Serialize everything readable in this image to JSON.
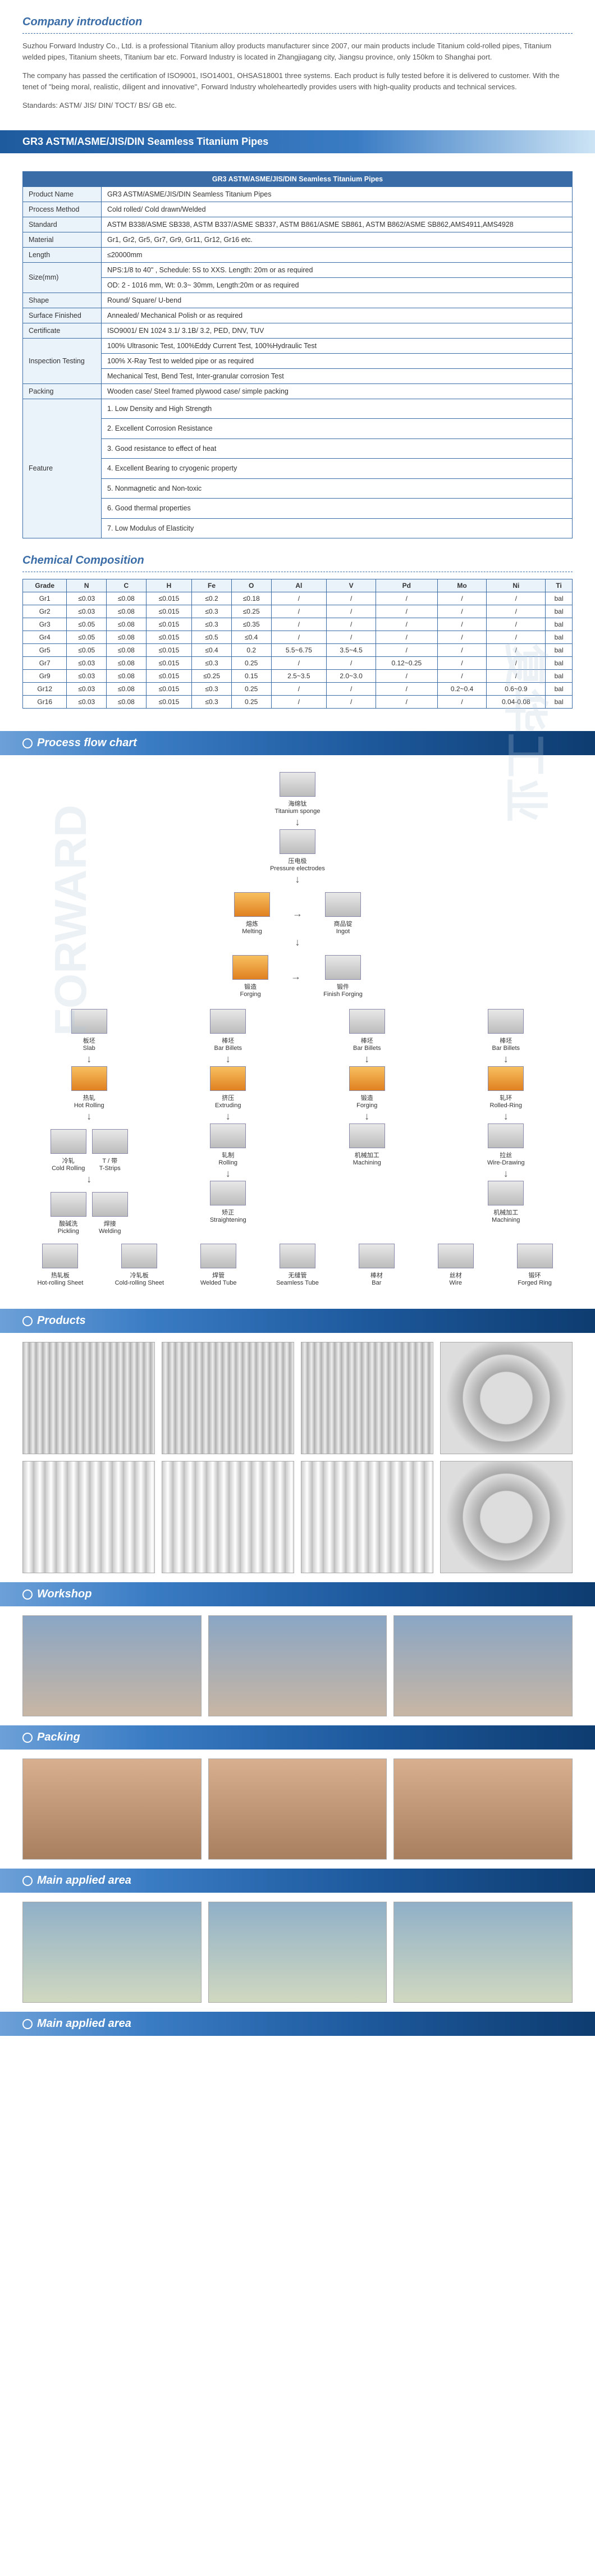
{
  "company_intro": {
    "title": "Company introduction",
    "p1": "Suzhou Forward Industry Co., Ltd. is a professional Titanium alloy products manufacturer since 2007, our main products include Titanium cold-rolled pipes, Titanium welded pipes, Titanium sheets, Titanium bar etc. Forward Industry is located in Zhangjiagang city, Jiangsu province, only 150km to Shanghai port.",
    "p2": "The company has passed the certification of ISO9001, ISO14001, OHSAS18001 three systems. Each product is fully tested before it is delivered to customer. With the tenet of \"being moral, realistic, diligent and innovative\", Forward Industry wholeheartedly provides users with high-quality products and technical services.",
    "p3": "Standards: ASTM/ JIS/ DIN/ TOCT/ BS/ GB etc."
  },
  "banner": "GR3 ASTM/ASME/JIS/DIN Seamless Titanium  Pipes",
  "spec": {
    "header": "GR3 ASTM/ASME/JIS/DIN Seamless Titanium  Pipes",
    "rows": [
      {
        "label": "Product Name",
        "value": "GR3 ASTM/ASME/JIS/DIN Seamless Titanium  Pipes"
      },
      {
        "label": "Process Method",
        "value": "Cold rolled/ Cold drawn/Welded"
      },
      {
        "label": "Standard",
        "value": "ASTM B338/ASME SB338, ASTM B337/ASME SB337, ASTM B861/ASME SB861, ASTM B862/ASME SB862,AMS4911,AMS4928"
      },
      {
        "label": "Material",
        "value": "Gr1, Gr2, Gr5, Gr7, Gr9, Gr11, Gr12, Gr16 etc."
      },
      {
        "label": "Length",
        "value": "≤20000mm"
      },
      {
        "label": "Size(mm)",
        "value": "NPS:1/8 to 40\" , Schedule: 5S to XXS. Length: 20m or as required\nOD: 2 - 1016 mm, Wt: 0.3~ 30mm, Length:20m or as required"
      },
      {
        "label": "Shape",
        "value": "Round/ Square/ U-bend"
      },
      {
        "label": "Surface Finished",
        "value": "Annealed/ Mechanical Polish or as required"
      },
      {
        "label": "Certificate",
        "value": "ISO9001/  EN 1024 3.1/ 3.1B/ 3.2, PED, DNV, TUV"
      },
      {
        "label": "Inspection Testing",
        "value": "100% Ultrasonic Test, 100%Eddy Current Test, 100%Hydraulic Test\n100% X-Ray Test to welded pipe or as required\nMechanical Test, Bend Test, Inter-granular corrosion Test"
      },
      {
        "label": "Packing",
        "value": "Wooden case/ Steel framed plywood case/ simple packing"
      },
      {
        "label": "Feature",
        "value": "1. Low Density and High Strength\n2. Excellent Corrosion Resistance\n3. Good resistance to effect of heat\n4. Excellent Bearing to cryogenic property\n5. Nonmagnetic and Non-toxic\n6. Good thermal properties\n7. Low Modulus of Elasticity"
      }
    ]
  },
  "chem": {
    "title": "Chemical Composition",
    "columns": [
      "Grade",
      "N",
      "C",
      "H",
      "Fe",
      "O",
      "Al",
      "V",
      "Pd",
      "Mo",
      "Ni",
      "Ti"
    ],
    "rows": [
      [
        "Gr1",
        "≤0.03",
        "≤0.08",
        "≤0.015",
        "≤0.2",
        "≤0.18",
        "/",
        "/",
        "/",
        "/",
        "/",
        "bal"
      ],
      [
        "Gr2",
        "≤0.03",
        "≤0.08",
        "≤0.015",
        "≤0.3",
        "≤0.25",
        "/",
        "/",
        "/",
        "/",
        "/",
        "bal"
      ],
      [
        "Gr3",
        "≤0.05",
        "≤0.08",
        "≤0.015",
        "≤0.3",
        "≤0.35",
        "/",
        "/",
        "/",
        "/",
        "/",
        "bal"
      ],
      [
        "Gr4",
        "≤0.05",
        "≤0.08",
        "≤0.015",
        "≤0.5",
        "≤0.4",
        "/",
        "/",
        "/",
        "/",
        "/",
        "bal"
      ],
      [
        "Gr5",
        "≤0.05",
        "≤0.08",
        "≤0.015",
        "≤0.4",
        "0.2",
        "5.5~6.75",
        "3.5~4.5",
        "/",
        "/",
        "/",
        "bal"
      ],
      [
        "Gr7",
        "≤0.03",
        "≤0.08",
        "≤0.015",
        "≤0.3",
        "0.25",
        "/",
        "/",
        "0.12~0.25",
        "/",
        "/",
        "bal"
      ],
      [
        "Gr9",
        "≤0.03",
        "≤0.08",
        "≤0.015",
        "≤0.25",
        "0.15",
        "2.5~3.5",
        "2.0~3.0",
        "/",
        "/",
        "/",
        "bal"
      ],
      [
        "Gr12",
        "≤0.03",
        "≤0.08",
        "≤0.015",
        "≤0.3",
        "0.25",
        "/",
        "/",
        "/",
        "0.2~0.4",
        "0.6~0.9",
        "bal"
      ],
      [
        "Gr16",
        "≤0.03",
        "≤0.08",
        "≤0.015",
        "≤0.3",
        "0.25",
        "/",
        "/",
        "/",
        "/",
        "0.04-0.08",
        "bal"
      ]
    ]
  },
  "ribbons": {
    "flow": "Process flow chart",
    "products": "Products",
    "workshop": "Workshop",
    "packing": "Packing",
    "area1": "Main applied area",
    "area2": "Main applied area"
  },
  "flow": {
    "sponge": {
      "cn": "海绵钛",
      "en": "Titanium sponge"
    },
    "electrode": {
      "cn": "压电极",
      "en": "Pressure electrodes"
    },
    "melt": {
      "cn": "熔炼",
      "en": "Melting"
    },
    "ingot": {
      "cn": "商品锭",
      "en": "Ingot"
    },
    "forging": {
      "cn": "锻造",
      "en": "Forging"
    },
    "finish_forge": {
      "cn": "锻件",
      "en": "Finish Forging"
    },
    "slab": {
      "cn": "板坯",
      "en": "Slab"
    },
    "bar_billets1": {
      "cn": "棒坯",
      "en": "Bar Billets"
    },
    "bar_billets2": {
      "cn": "棒坯",
      "en": "Bar Billets"
    },
    "bar_billets3": {
      "cn": "棒坯",
      "en": "Bar Billets"
    },
    "hot_roll": {
      "cn": "热轧",
      "en": "Hot Rolling"
    },
    "extrude": {
      "cn": "挤压",
      "en": "Extruding"
    },
    "forging2": {
      "cn": "锻造",
      "en": "Forging"
    },
    "rolled_ring": {
      "cn": "轧环",
      "en": "Rolled-Ring"
    },
    "cold_roll": {
      "cn": "冷轧",
      "en": "Cold Rolling"
    },
    "t_strips": {
      "cn": "T / 带",
      "en": "T-Strips"
    },
    "rolling": {
      "cn": "轧制",
      "en": "Rolling"
    },
    "wire_draw": {
      "cn": "拉丝",
      "en": "Wire-Drawing"
    },
    "pickling": {
      "cn": "酸碱洗",
      "en": "Pickling"
    },
    "welding": {
      "cn": "焊接",
      "en": "Welding"
    },
    "straight": {
      "cn": "矫正",
      "en": "Straightening"
    },
    "machining1": {
      "cn": "机械加工",
      "en": "Machining"
    },
    "machining2": {
      "cn": "机械加工",
      "en": "Machining"
    },
    "hr_sheet": {
      "cn": "热轧板",
      "en": "Hot-rolling Sheet"
    },
    "cr_sheet": {
      "cn": "冷轧板",
      "en": "Cold-rolling Sheet"
    },
    "welded_tube": {
      "cn": "焊管",
      "en": "Welded Tube"
    },
    "seamless": {
      "cn": "无缝管",
      "en": "Seamless Tube"
    },
    "bar": {
      "cn": "棒材",
      "en": "Bar"
    },
    "wire": {
      "cn": "丝材",
      "en": "Wire"
    },
    "forged_ring": {
      "cn": "锻环",
      "en": "Forged Ring"
    }
  },
  "colors": {
    "brand_blue": "#3a6ca8",
    "banner_start": "#1e5a9e",
    "banner_end": "#cde4f5",
    "table_border": "#3a6ca8",
    "label_bg": "#eaf2fa"
  }
}
